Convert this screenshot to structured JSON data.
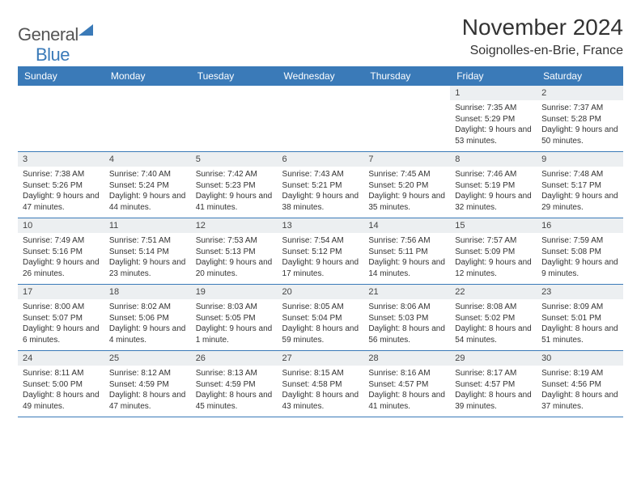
{
  "logo": {
    "text_gray": "General",
    "text_blue": "Blue"
  },
  "title": "November 2024",
  "location": "Soignolles-en-Brie, France",
  "colors": {
    "header_bg": "#3a7ab8",
    "header_text": "#ffffff",
    "daynum_bg": "#eceff1",
    "border": "#3a7ab8"
  },
  "weekdays": [
    "Sunday",
    "Monday",
    "Tuesday",
    "Wednesday",
    "Thursday",
    "Friday",
    "Saturday"
  ],
  "weeks": [
    [
      {
        "n": "",
        "sr": "",
        "ss": "",
        "dl": ""
      },
      {
        "n": "",
        "sr": "",
        "ss": "",
        "dl": ""
      },
      {
        "n": "",
        "sr": "",
        "ss": "",
        "dl": ""
      },
      {
        "n": "",
        "sr": "",
        "ss": "",
        "dl": ""
      },
      {
        "n": "",
        "sr": "",
        "ss": "",
        "dl": ""
      },
      {
        "n": "1",
        "sr": "Sunrise: 7:35 AM",
        "ss": "Sunset: 5:29 PM",
        "dl": "Daylight: 9 hours and 53 minutes."
      },
      {
        "n": "2",
        "sr": "Sunrise: 7:37 AM",
        "ss": "Sunset: 5:28 PM",
        "dl": "Daylight: 9 hours and 50 minutes."
      }
    ],
    [
      {
        "n": "3",
        "sr": "Sunrise: 7:38 AM",
        "ss": "Sunset: 5:26 PM",
        "dl": "Daylight: 9 hours and 47 minutes."
      },
      {
        "n": "4",
        "sr": "Sunrise: 7:40 AM",
        "ss": "Sunset: 5:24 PM",
        "dl": "Daylight: 9 hours and 44 minutes."
      },
      {
        "n": "5",
        "sr": "Sunrise: 7:42 AM",
        "ss": "Sunset: 5:23 PM",
        "dl": "Daylight: 9 hours and 41 minutes."
      },
      {
        "n": "6",
        "sr": "Sunrise: 7:43 AM",
        "ss": "Sunset: 5:21 PM",
        "dl": "Daylight: 9 hours and 38 minutes."
      },
      {
        "n": "7",
        "sr": "Sunrise: 7:45 AM",
        "ss": "Sunset: 5:20 PM",
        "dl": "Daylight: 9 hours and 35 minutes."
      },
      {
        "n": "8",
        "sr": "Sunrise: 7:46 AM",
        "ss": "Sunset: 5:19 PM",
        "dl": "Daylight: 9 hours and 32 minutes."
      },
      {
        "n": "9",
        "sr": "Sunrise: 7:48 AM",
        "ss": "Sunset: 5:17 PM",
        "dl": "Daylight: 9 hours and 29 minutes."
      }
    ],
    [
      {
        "n": "10",
        "sr": "Sunrise: 7:49 AM",
        "ss": "Sunset: 5:16 PM",
        "dl": "Daylight: 9 hours and 26 minutes."
      },
      {
        "n": "11",
        "sr": "Sunrise: 7:51 AM",
        "ss": "Sunset: 5:14 PM",
        "dl": "Daylight: 9 hours and 23 minutes."
      },
      {
        "n": "12",
        "sr": "Sunrise: 7:53 AM",
        "ss": "Sunset: 5:13 PM",
        "dl": "Daylight: 9 hours and 20 minutes."
      },
      {
        "n": "13",
        "sr": "Sunrise: 7:54 AM",
        "ss": "Sunset: 5:12 PM",
        "dl": "Daylight: 9 hours and 17 minutes."
      },
      {
        "n": "14",
        "sr": "Sunrise: 7:56 AM",
        "ss": "Sunset: 5:11 PM",
        "dl": "Daylight: 9 hours and 14 minutes."
      },
      {
        "n": "15",
        "sr": "Sunrise: 7:57 AM",
        "ss": "Sunset: 5:09 PM",
        "dl": "Daylight: 9 hours and 12 minutes."
      },
      {
        "n": "16",
        "sr": "Sunrise: 7:59 AM",
        "ss": "Sunset: 5:08 PM",
        "dl": "Daylight: 9 hours and 9 minutes."
      }
    ],
    [
      {
        "n": "17",
        "sr": "Sunrise: 8:00 AM",
        "ss": "Sunset: 5:07 PM",
        "dl": "Daylight: 9 hours and 6 minutes."
      },
      {
        "n": "18",
        "sr": "Sunrise: 8:02 AM",
        "ss": "Sunset: 5:06 PM",
        "dl": "Daylight: 9 hours and 4 minutes."
      },
      {
        "n": "19",
        "sr": "Sunrise: 8:03 AM",
        "ss": "Sunset: 5:05 PM",
        "dl": "Daylight: 9 hours and 1 minute."
      },
      {
        "n": "20",
        "sr": "Sunrise: 8:05 AM",
        "ss": "Sunset: 5:04 PM",
        "dl": "Daylight: 8 hours and 59 minutes."
      },
      {
        "n": "21",
        "sr": "Sunrise: 8:06 AM",
        "ss": "Sunset: 5:03 PM",
        "dl": "Daylight: 8 hours and 56 minutes."
      },
      {
        "n": "22",
        "sr": "Sunrise: 8:08 AM",
        "ss": "Sunset: 5:02 PM",
        "dl": "Daylight: 8 hours and 54 minutes."
      },
      {
        "n": "23",
        "sr": "Sunrise: 8:09 AM",
        "ss": "Sunset: 5:01 PM",
        "dl": "Daylight: 8 hours and 51 minutes."
      }
    ],
    [
      {
        "n": "24",
        "sr": "Sunrise: 8:11 AM",
        "ss": "Sunset: 5:00 PM",
        "dl": "Daylight: 8 hours and 49 minutes."
      },
      {
        "n": "25",
        "sr": "Sunrise: 8:12 AM",
        "ss": "Sunset: 4:59 PM",
        "dl": "Daylight: 8 hours and 47 minutes."
      },
      {
        "n": "26",
        "sr": "Sunrise: 8:13 AM",
        "ss": "Sunset: 4:59 PM",
        "dl": "Daylight: 8 hours and 45 minutes."
      },
      {
        "n": "27",
        "sr": "Sunrise: 8:15 AM",
        "ss": "Sunset: 4:58 PM",
        "dl": "Daylight: 8 hours and 43 minutes."
      },
      {
        "n": "28",
        "sr": "Sunrise: 8:16 AM",
        "ss": "Sunset: 4:57 PM",
        "dl": "Daylight: 8 hours and 41 minutes."
      },
      {
        "n": "29",
        "sr": "Sunrise: 8:17 AM",
        "ss": "Sunset: 4:57 PM",
        "dl": "Daylight: 8 hours and 39 minutes."
      },
      {
        "n": "30",
        "sr": "Sunrise: 8:19 AM",
        "ss": "Sunset: 4:56 PM",
        "dl": "Daylight: 8 hours and 37 minutes."
      }
    ]
  ]
}
